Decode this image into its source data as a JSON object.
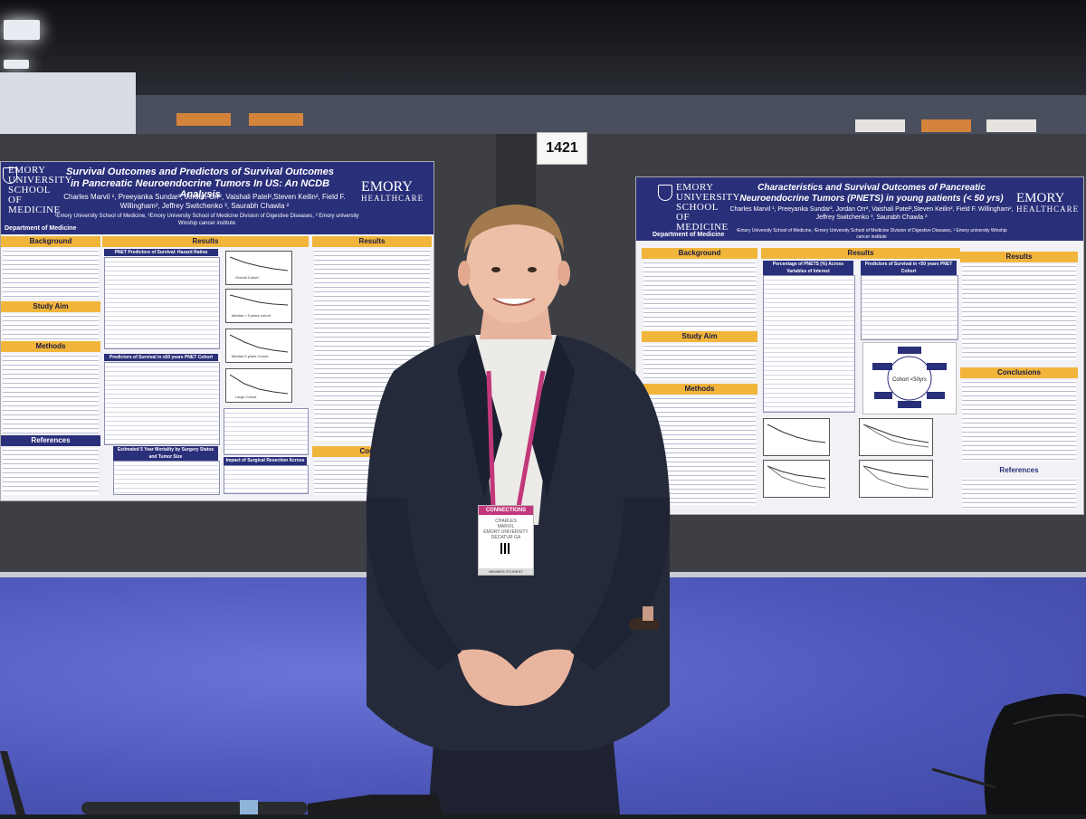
{
  "booth": {
    "number": "1421"
  },
  "poster_left": {
    "title": "Survival Outcomes and Predictors of Survival Outcomes in Pancreatic Neuroendocrine Tumors In US: An NCDB Analysis",
    "authors": "Charles Marvil ¹, Preeyanka Sundar², Jordan Orr², Vaishali Patel²,Steven Keilin², Field F. Willingham², Jeffrey Switchenko ³, Saurabh Chawla ²",
    "affiliations": "¹Emory University School of Medicine, ²Emory University School of Medicine Division of Digestive Diseases, ³ Emory university Winship cancer institute",
    "logo_left": "EMORY UNIVERSITY SCHOOL OF MEDICINE",
    "logo_right": "EMORY",
    "logo_right_sub": "HEALTHCARE",
    "department": "Department of Medicine",
    "sections": {
      "background": "Background",
      "results_left": "Results",
      "results_right": "Results",
      "study_aim": "Study Aim",
      "methods": "Methods",
      "conclusions": "Conclu",
      "references": "References"
    },
    "table_titles": {
      "hazard": "PNET Predictors of Survival: Hazard Ratios",
      "young": "Predictors of Survival in ≤50 years PNET Cohort",
      "mortality": "Estimated 5 Year Mortality by Surgery Status and Tumor Size",
      "resection": "Impact of Surgical Resection Across Tumor Size"
    },
    "chart_labels": [
      "Overall Cohort",
      "Median < 5 years cohort",
      "Median 5 years Cohort",
      "Large Cohort"
    ]
  },
  "poster_right": {
    "title": "Characteristics and Survival Outcomes of Pancreatic Neuroendocrine Tumors (PNETS) in young patients (< 50 yrs)",
    "authors": "Charles Marvil ¹, Preeyanka Sundar², Jordan Orr², Vaishali Patel²,Steven Keilin², Field F. Willingham², Jeffrey Switchenko ³, Saurabh Chawla ²",
    "affiliations": "¹Emory University School of Medicine, ²Emory University School of Medicine Division of Digestive Diseases, ³ Emory university Winship cancer institute",
    "logo_left": "EMORY UNIVERSITY SCHOOL OF MEDICINE",
    "logo_right": "EMORY",
    "logo_right_sub": "HEALTHCARE",
    "department": "Department of Medicine",
    "sections": {
      "background": "Background",
      "results": "Results",
      "results_right": "Results",
      "study_aim": "Study Aim",
      "methods": "Methods",
      "conclusions": "Conclusions",
      "references": "References"
    },
    "table_titles": {
      "percentage": "Percentage of PNETS (%) Across Variables of Interest",
      "predictors": "Predictors of Survival in <50 years PNET Cohort"
    },
    "diagram_center": "Cohort <50yrs"
  },
  "badge": {
    "header": "CONNECTIONS",
    "name_first": "CHARLES",
    "name_last": "MARVIL",
    "org": "EMORY UNIVERSITY",
    "location": "DECATUR GA",
    "footer": "MEMBER STUDENT"
  },
  "colors": {
    "poster_navy": "#2a2f7a",
    "section_gold": "#f1b53b",
    "carpet_blue": "#4c56b8",
    "lanyard_pink": "#c2387a"
  }
}
